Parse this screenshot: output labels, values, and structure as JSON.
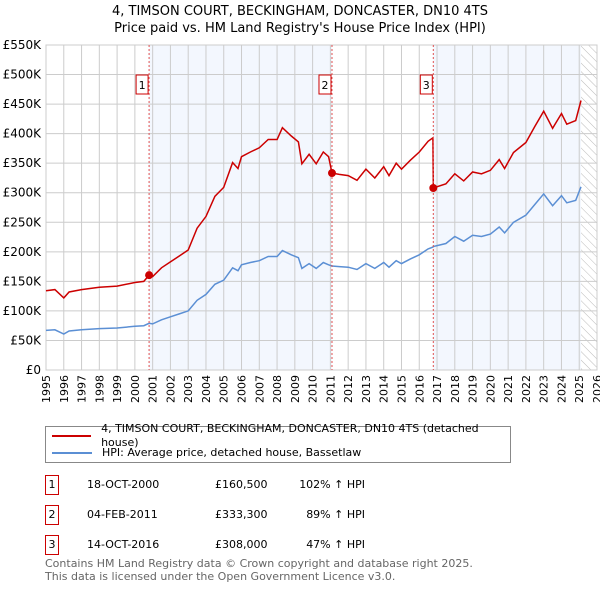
{
  "chart_data": {
    "type": "line",
    "title": "4, TIMSON COURT, BECKINGHAM, DONCASTER, DN10 4TS",
    "subtitle": "Price paid vs. HM Land Registry's House Price Index (HPI)",
    "xlim": [
      1995,
      2026
    ],
    "ylim": [
      0,
      550000
    ],
    "x_ticks": [
      "1995",
      "1996",
      "1997",
      "1998",
      "1999",
      "2000",
      "2001",
      "2002",
      "2003",
      "2004",
      "2005",
      "2006",
      "2007",
      "2008",
      "2009",
      "2010",
      "2011",
      "2012",
      "2013",
      "2014",
      "2015",
      "2016",
      "2017",
      "2018",
      "2019",
      "2020",
      "2021",
      "2022",
      "2023",
      "2024",
      "2025",
      "2026"
    ],
    "y_ticks": [
      {
        "v": 0,
        "label": "£0"
      },
      {
        "v": 50000,
        "label": "£50K"
      },
      {
        "v": 100000,
        "label": "£100K"
      },
      {
        "v": 150000,
        "label": "£150K"
      },
      {
        "v": 200000,
        "label": "£200K"
      },
      {
        "v": 250000,
        "label": "£250K"
      },
      {
        "v": 300000,
        "label": "£300K"
      },
      {
        "v": 350000,
        "label": "£350K"
      },
      {
        "v": 400000,
        "label": "£400K"
      },
      {
        "v": 450000,
        "label": "£450K"
      },
      {
        "v": 500000,
        "label": "£500K"
      },
      {
        "v": 550000,
        "label": "£550K"
      }
    ],
    "grid": true,
    "shaded_ranges": [
      [
        2000.8,
        2011.09
      ],
      [
        2016.79,
        2025.1
      ]
    ],
    "hatched_from": 2025.1,
    "x": [
      1995.0,
      1995.5,
      1996.0,
      1996.3,
      1997,
      1998,
      1999,
      2000,
      2000.5,
      2000.8,
      2001.0,
      2001.5,
      2002,
      2002.5,
      2003,
      2003.5,
      2004,
      2004.5,
      2005,
      2005.5,
      2005.8,
      2006,
      2006.5,
      2007,
      2007.5,
      2008,
      2008.3,
      2008.8,
      2009.2,
      2009.4,
      2009.8,
      2010.2,
      2010.6,
      2010.9,
      2011.09,
      2011.5,
      2012,
      2012.5,
      2013,
      2013.5,
      2014,
      2014.3,
      2014.7,
      2015,
      2015.5,
      2016,
      2016.5,
      2016.77,
      2016.79,
      2017.5,
      2018,
      2018.5,
      2019,
      2019.5,
      2020,
      2020.5,
      2020.8,
      2021.3,
      2022,
      2022.5,
      2023,
      2023.5,
      2024,
      2024.3,
      2024.8,
      2025.1
    ],
    "series": [
      {
        "name": "4, TIMSON COURT, BECKINGHAM, DONCASTER, DN10 4TS (detached house)",
        "color": "#cc0000",
        "values": [
          134,
          136,
          122,
          132,
          136,
          140,
          142,
          148,
          150,
          160.5,
          158,
          173,
          183,
          193,
          203,
          240,
          260,
          294,
          309,
          351,
          341,
          361,
          369,
          376,
          390,
          390,
          410,
          396,
          386,
          349,
          365,
          349,
          369,
          361,
          333.3,
          331,
          329,
          321,
          340,
          325,
          344,
          329,
          350,
          340,
          355,
          369,
          387,
          393,
          308,
          315,
          332,
          320,
          335,
          332,
          338,
          356,
          341,
          368,
          385,
          412,
          438,
          409,
          434,
          416,
          422,
          456
        ]
      },
      {
        "name": "HPI: Average price, detached house, Bassetlaw",
        "color": "#5b8fd4",
        "values": [
          67,
          68,
          61,
          66,
          68,
          70,
          71,
          74,
          75,
          79,
          78,
          85,
          90,
          95,
          100,
          118,
          128,
          145,
          152,
          173,
          168,
          178,
          182,
          185,
          192,
          192,
          202,
          195,
          190,
          172,
          180,
          172,
          182,
          178,
          176,
          175,
          174,
          170,
          180,
          172,
          182,
          174,
          185,
          180,
          188,
          195,
          205,
          208,
          209,
          214,
          226,
          218,
          228,
          226,
          230,
          242,
          232,
          250,
          262,
          280,
          298,
          278,
          295,
          283,
          287,
          310
        ]
      }
    ],
    "value_unit": "£ thousands",
    "sales": [
      {
        "n": "1",
        "x": 2000.8,
        "date": "18-OCT-2000",
        "price": "£160,500",
        "value": 160.5,
        "hpi": "102% ↑ HPI"
      },
      {
        "n": "2",
        "x": 2011.09,
        "date": "04-FEB-2011",
        "price": "£333,300",
        "value": 333.3,
        "hpi": "89% ↑ HPI"
      },
      {
        "n": "3",
        "x": 2016.79,
        "date": "14-OCT-2016",
        "price": "£308,000",
        "value": 308,
        "hpi": "47% ↑ HPI"
      }
    ]
  },
  "legend": {
    "price_label": "4, TIMSON COURT, BECKINGHAM, DONCASTER, DN10 4TS (detached house)",
    "hpi_label": "HPI: Average price, detached house, Bassetlaw"
  },
  "footer": {
    "line1": "Contains HM Land Registry data © Crown copyright and database right 2025.",
    "line2": "This data is licensed under the Open Government Licence v3.0."
  }
}
